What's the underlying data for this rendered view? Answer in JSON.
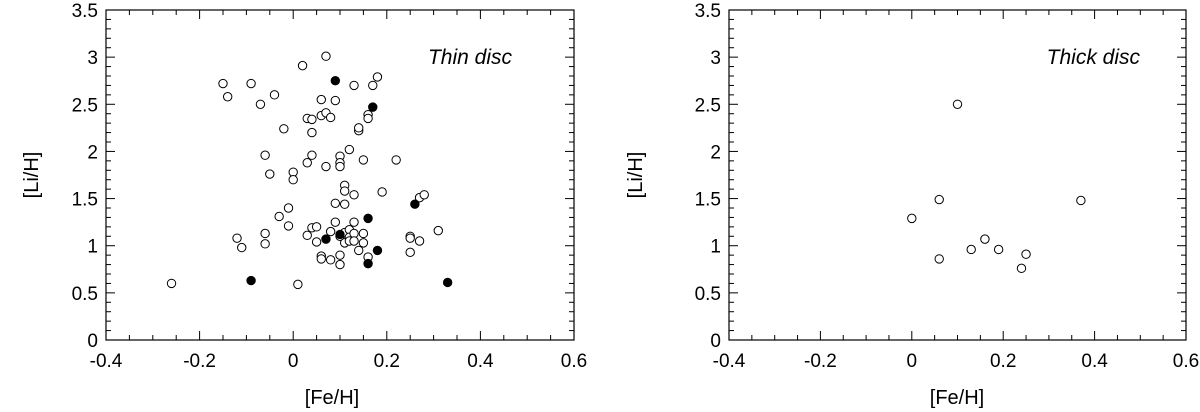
{
  "chart_data": [
    {
      "type": "scatter",
      "title": "Thin disc",
      "xlabel": "[Fe/H]",
      "ylabel": "[Li/H]",
      "xlim": [
        -0.4,
        0.6
      ],
      "ylim": [
        0,
        3.5
      ],
      "xticks": [
        "-0.4",
        "-0.2",
        "0",
        "0.2",
        "0.4",
        "0.6"
      ],
      "yticks": [
        "0",
        "0.5",
        "1",
        "1.5",
        "2",
        "2.5",
        "3",
        "3.5"
      ],
      "grid": false,
      "series": [
        {
          "marker": "open-circle",
          "color": "#000000",
          "points": [
            [
              -0.26,
              0.6
            ],
            [
              -0.15,
              2.72
            ],
            [
              -0.14,
              2.58
            ],
            [
              -0.12,
              1.08
            ],
            [
              -0.11,
              0.98
            ],
            [
              -0.09,
              2.72
            ],
            [
              -0.04,
              2.6
            ],
            [
              -0.07,
              2.5
            ],
            [
              -0.06,
              1.96
            ],
            [
              -0.06,
              1.13
            ],
            [
              -0.06,
              1.02
            ],
            [
              -0.05,
              1.76
            ],
            [
              -0.03,
              1.31
            ],
            [
              -0.02,
              2.24
            ],
            [
              -0.01,
              1.4
            ],
            [
              -0.01,
              1.21
            ],
            [
              0.0,
              1.78
            ],
            [
              0.0,
              1.7
            ],
            [
              0.01,
              0.59
            ],
            [
              0.02,
              2.91
            ],
            [
              0.03,
              2.35
            ],
            [
              0.03,
              1.88
            ],
            [
              0.03,
              1.11
            ],
            [
              0.04,
              2.34
            ],
            [
              0.04,
              2.2
            ],
            [
              0.04,
              1.96
            ],
            [
              0.04,
              1.19
            ],
            [
              0.05,
              1.2
            ],
            [
              0.05,
              1.04
            ],
            [
              0.06,
              2.38
            ],
            [
              0.06,
              2.55
            ],
            [
              0.06,
              0.89
            ],
            [
              0.06,
              0.86
            ],
            [
              0.07,
              3.01
            ],
            [
              0.07,
              2.41
            ],
            [
              0.07,
              1.84
            ],
            [
              0.08,
              2.36
            ],
            [
              0.08,
              1.15
            ],
            [
              0.08,
              0.85
            ],
            [
              0.09,
              2.54
            ],
            [
              0.09,
              1.45
            ],
            [
              0.09,
              1.25
            ],
            [
              0.1,
              1.95
            ],
            [
              0.1,
              1.88
            ],
            [
              0.1,
              1.84
            ],
            [
              0.1,
              1.1
            ],
            [
              0.1,
              0.9
            ],
            [
              0.1,
              0.8
            ],
            [
              0.11,
              1.64
            ],
            [
              0.11,
              1.58
            ],
            [
              0.11,
              1.44
            ],
            [
              0.11,
              1.14
            ],
            [
              0.11,
              1.03
            ],
            [
              0.12,
              1.17
            ],
            [
              0.12,
              1.09
            ],
            [
              0.12,
              1.05
            ],
            [
              0.12,
              2.02
            ],
            [
              0.13,
              2.7
            ],
            [
              0.13,
              1.54
            ],
            [
              0.13,
              1.25
            ],
            [
              0.13,
              1.13
            ],
            [
              0.13,
              1.05
            ],
            [
              0.14,
              2.22
            ],
            [
              0.14,
              2.25
            ],
            [
              0.14,
              0.95
            ],
            [
              0.15,
              1.91
            ],
            [
              0.15,
              1.13
            ],
            [
              0.15,
              1.03
            ],
            [
              0.16,
              2.39
            ],
            [
              0.16,
              2.35
            ],
            [
              0.16,
              0.88
            ],
            [
              0.17,
              2.7
            ],
            [
              0.18,
              2.79
            ],
            [
              0.19,
              1.57
            ],
            [
              0.22,
              1.91
            ],
            [
              0.25,
              1.1
            ],
            [
              0.25,
              1.08
            ],
            [
              0.25,
              0.93
            ],
            [
              0.27,
              1.51
            ],
            [
              0.27,
              1.05
            ],
            [
              0.28,
              1.54
            ],
            [
              0.31,
              1.16
            ]
          ]
        },
        {
          "marker": "filled-circle",
          "color": "#000000",
          "points": [
            [
              -0.09,
              0.63
            ],
            [
              0.07,
              1.07
            ],
            [
              0.09,
              2.75
            ],
            [
              0.1,
              1.12
            ],
            [
              0.16,
              1.29
            ],
            [
              0.16,
              0.81
            ],
            [
              0.17,
              2.47
            ],
            [
              0.18,
              0.95
            ],
            [
              0.26,
              1.44
            ],
            [
              0.33,
              0.61
            ]
          ]
        }
      ]
    },
    {
      "type": "scatter",
      "title": "Thick disc",
      "xlabel": "[Fe/H]",
      "ylabel": "[Li/H]",
      "xlim": [
        -0.4,
        0.6
      ],
      "ylim": [
        0,
        3.5
      ],
      "xticks": [
        "-0.4",
        "-0.2",
        "0",
        "0.2",
        "0.4",
        "0.6"
      ],
      "yticks": [
        "0",
        "0.5",
        "1",
        "1.5",
        "2",
        "2.5",
        "3",
        "3.5"
      ],
      "grid": false,
      "series": [
        {
          "marker": "open-circle",
          "color": "#000000",
          "points": [
            [
              0.0,
              1.29
            ],
            [
              0.06,
              1.49
            ],
            [
              0.06,
              0.86
            ],
            [
              0.1,
              2.5
            ],
            [
              0.13,
              0.96
            ],
            [
              0.16,
              1.07
            ],
            [
              0.19,
              0.96
            ],
            [
              0.24,
              0.76
            ],
            [
              0.25,
              0.91
            ],
            [
              0.37,
              1.48
            ]
          ]
        }
      ]
    }
  ]
}
